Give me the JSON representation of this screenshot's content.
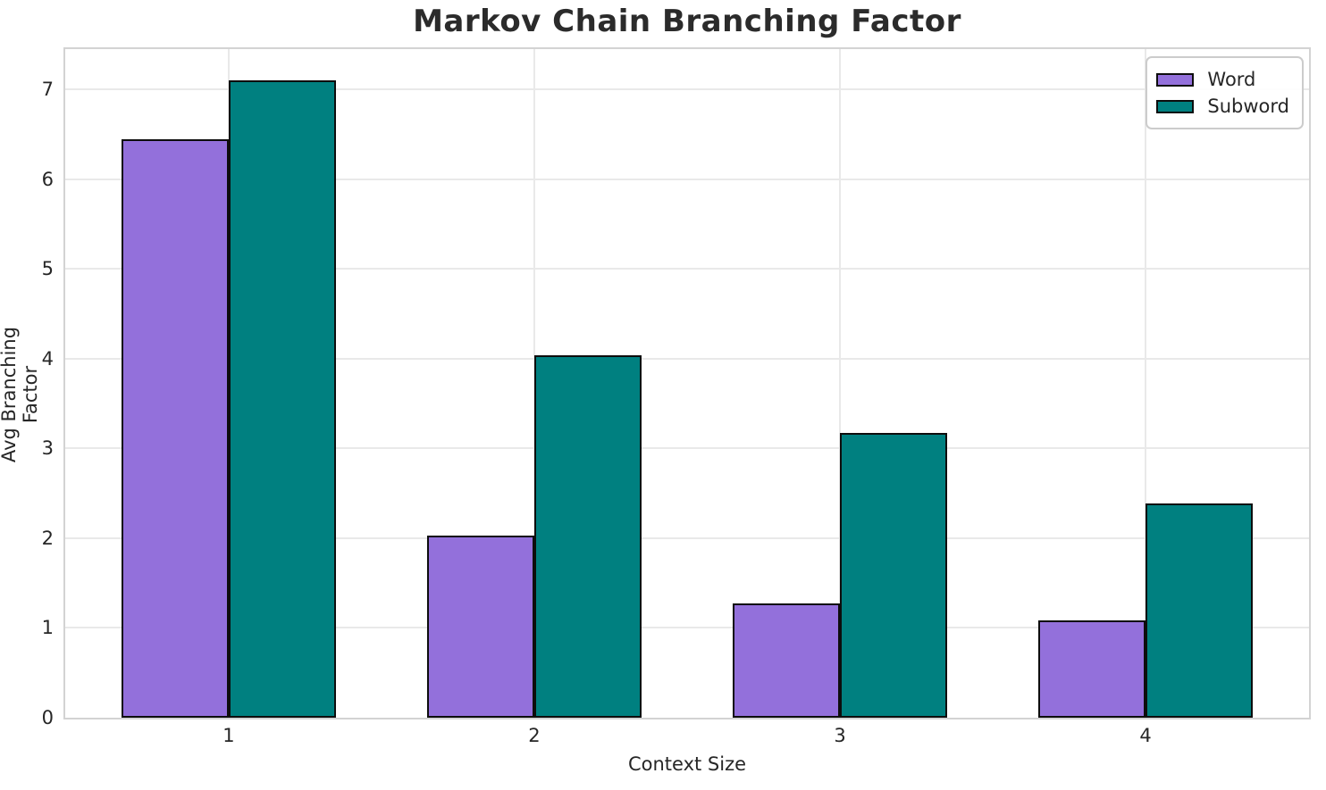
{
  "chart_data": {
    "type": "bar",
    "title": "Markov Chain Branching Factor",
    "xlabel": "Context Size",
    "ylabel": "Avg Branching Factor",
    "categories": [
      "1",
      "2",
      "3",
      "4"
    ],
    "series": [
      {
        "name": "Word",
        "color": "#9370DB",
        "values": [
          6.45,
          2.03,
          1.27,
          1.08
        ]
      },
      {
        "name": "Subword",
        "color": "#008080",
        "values": [
          7.1,
          4.04,
          3.17,
          2.39
        ]
      }
    ],
    "yticks": [
      0,
      1,
      2,
      3,
      4,
      5,
      6,
      7
    ],
    "ylim": [
      0,
      7.45
    ],
    "xlim": [
      0.465,
      4.535
    ],
    "bar_width_units": 0.35,
    "legend_position": "upper right",
    "grid": "both",
    "colors": {
      "background": "#ffffff",
      "grid": "#e9e9e9",
      "spine": "#d3d3d3",
      "bar_edge": "#0d0d0d",
      "text": "#262626",
      "title_text": "#2b2b2b",
      "legend_border": "#cccccc"
    }
  }
}
